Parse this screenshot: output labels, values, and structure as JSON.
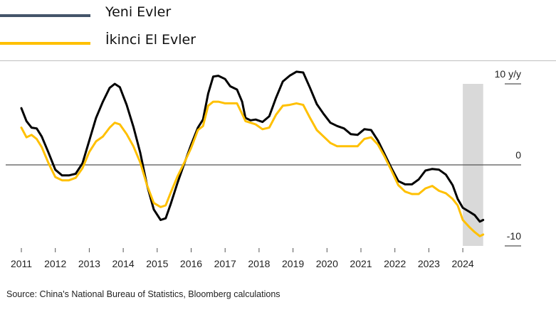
{
  "legend": [
    {
      "label": "Yeni Evler",
      "color": "#44546a"
    },
    {
      "label": "İkinci El Evler",
      "color": "#ffc000"
    }
  ],
  "source": "Source: China's National Bureau of Statistics, Bloomberg calculations",
  "chart_data": {
    "type": "line",
    "title": "",
    "xlabel": "",
    "ylabel": "y/y",
    "xlim": [
      2011,
      2024.6
    ],
    "ylim": [
      -10,
      10
    ],
    "x_ticks": [
      "2011",
      "2012",
      "2013",
      "2014",
      "2015",
      "2016",
      "2017",
      "2018",
      "2019",
      "2020",
      "2021",
      "2022",
      "2023",
      "2024"
    ],
    "y_ticks": [
      {
        "value": 10,
        "label": "10 y/y"
      },
      {
        "value": 0,
        "label": "0"
      },
      {
        "value": -10,
        "label": "-10"
      }
    ],
    "zero_line": true,
    "shaded_region": {
      "from": 2024.0,
      "to": 2024.6,
      "color": "#d9d9d9"
    },
    "series": [
      {
        "name": "New homes",
        "color": "#000000",
        "points": [
          [
            2011.0,
            7.0
          ],
          [
            2011.15,
            5.4
          ],
          [
            2011.3,
            4.6
          ],
          [
            2011.45,
            4.5
          ],
          [
            2011.6,
            3.5
          ],
          [
            2011.8,
            1.5
          ],
          [
            2012.0,
            -0.6
          ],
          [
            2012.2,
            -1.3
          ],
          [
            2012.4,
            -1.3
          ],
          [
            2012.6,
            -1.1
          ],
          [
            2012.8,
            0.2
          ],
          [
            2013.0,
            3.0
          ],
          [
            2013.2,
            5.8
          ],
          [
            2013.4,
            7.8
          ],
          [
            2013.6,
            9.5
          ],
          [
            2013.75,
            10.0
          ],
          [
            2013.9,
            9.6
          ],
          [
            2014.1,
            7.4
          ],
          [
            2014.3,
            4.7
          ],
          [
            2014.5,
            1.5
          ],
          [
            2014.7,
            -2.5
          ],
          [
            2014.9,
            -5.5
          ],
          [
            2015.1,
            -6.8
          ],
          [
            2015.25,
            -6.6
          ],
          [
            2015.4,
            -4.8
          ],
          [
            2015.6,
            -2.2
          ],
          [
            2015.8,
            0.2
          ],
          [
            2016.0,
            2.5
          ],
          [
            2016.2,
            4.6
          ],
          [
            2016.35,
            5.6
          ],
          [
            2016.5,
            8.8
          ],
          [
            2016.65,
            10.9
          ],
          [
            2016.8,
            11.0
          ],
          [
            2017.0,
            10.6
          ],
          [
            2017.15,
            9.7
          ],
          [
            2017.35,
            9.3
          ],
          [
            2017.5,
            7.8
          ],
          [
            2017.6,
            5.8
          ],
          [
            2017.75,
            5.5
          ],
          [
            2017.9,
            5.6
          ],
          [
            2018.1,
            5.3
          ],
          [
            2018.3,
            6.0
          ],
          [
            2018.5,
            8.3
          ],
          [
            2018.7,
            10.3
          ],
          [
            2018.9,
            11.0
          ],
          [
            2019.1,
            11.5
          ],
          [
            2019.3,
            11.4
          ],
          [
            2019.5,
            9.5
          ],
          [
            2019.7,
            7.5
          ],
          [
            2019.9,
            6.3
          ],
          [
            2020.1,
            5.2
          ],
          [
            2020.3,
            4.8
          ],
          [
            2020.5,
            4.5
          ],
          [
            2020.7,
            3.8
          ],
          [
            2020.9,
            3.7
          ],
          [
            2021.1,
            4.4
          ],
          [
            2021.3,
            4.3
          ],
          [
            2021.5,
            3.0
          ],
          [
            2021.7,
            1.3
          ],
          [
            2021.9,
            -0.4
          ],
          [
            2022.1,
            -2.0
          ],
          [
            2022.3,
            -2.4
          ],
          [
            2022.5,
            -2.4
          ],
          [
            2022.7,
            -1.8
          ],
          [
            2022.9,
            -0.7
          ],
          [
            2023.1,
            -0.5
          ],
          [
            2023.3,
            -0.6
          ],
          [
            2023.5,
            -1.2
          ],
          [
            2023.7,
            -2.5
          ],
          [
            2023.85,
            -4.2
          ],
          [
            2024.0,
            -5.3
          ],
          [
            2024.2,
            -5.8
          ],
          [
            2024.35,
            -6.2
          ],
          [
            2024.5,
            -7.0
          ],
          [
            2024.6,
            -6.8
          ]
        ]
      },
      {
        "name": "Second-hand homes",
        "color": "#ffc000",
        "points": [
          [
            2011.0,
            4.6
          ],
          [
            2011.15,
            3.4
          ],
          [
            2011.3,
            3.7
          ],
          [
            2011.45,
            3.2
          ],
          [
            2011.6,
            2.2
          ],
          [
            2011.8,
            0.2
          ],
          [
            2012.0,
            -1.5
          ],
          [
            2012.2,
            -1.9
          ],
          [
            2012.4,
            -1.9
          ],
          [
            2012.6,
            -1.6
          ],
          [
            2012.8,
            -0.4
          ],
          [
            2013.0,
            1.6
          ],
          [
            2013.2,
            2.9
          ],
          [
            2013.4,
            3.5
          ],
          [
            2013.6,
            4.6
          ],
          [
            2013.75,
            5.2
          ],
          [
            2013.9,
            5.0
          ],
          [
            2014.1,
            3.8
          ],
          [
            2014.3,
            2.3
          ],
          [
            2014.5,
            0.3
          ],
          [
            2014.7,
            -2.5
          ],
          [
            2014.9,
            -4.7
          ],
          [
            2015.1,
            -5.2
          ],
          [
            2015.25,
            -5.0
          ],
          [
            2015.4,
            -3.4
          ],
          [
            2015.6,
            -1.4
          ],
          [
            2015.8,
            0.3
          ],
          [
            2016.0,
            2.1
          ],
          [
            2016.2,
            4.3
          ],
          [
            2016.35,
            4.8
          ],
          [
            2016.5,
            7.3
          ],
          [
            2016.65,
            7.8
          ],
          [
            2016.8,
            7.8
          ],
          [
            2017.0,
            7.6
          ],
          [
            2017.15,
            7.6
          ],
          [
            2017.35,
            7.6
          ],
          [
            2017.5,
            6.3
          ],
          [
            2017.6,
            5.4
          ],
          [
            2017.75,
            5.2
          ],
          [
            2017.9,
            5.0
          ],
          [
            2018.1,
            4.4
          ],
          [
            2018.3,
            4.6
          ],
          [
            2018.5,
            6.2
          ],
          [
            2018.7,
            7.3
          ],
          [
            2018.9,
            7.4
          ],
          [
            2019.1,
            7.6
          ],
          [
            2019.3,
            7.4
          ],
          [
            2019.5,
            5.8
          ],
          [
            2019.7,
            4.3
          ],
          [
            2019.9,
            3.5
          ],
          [
            2020.1,
            2.7
          ],
          [
            2020.3,
            2.3
          ],
          [
            2020.5,
            2.3
          ],
          [
            2020.7,
            2.3
          ],
          [
            2020.9,
            2.3
          ],
          [
            2021.1,
            3.2
          ],
          [
            2021.3,
            3.4
          ],
          [
            2021.5,
            2.5
          ],
          [
            2021.7,
            1.0
          ],
          [
            2021.9,
            -0.7
          ],
          [
            2022.1,
            -2.5
          ],
          [
            2022.3,
            -3.3
          ],
          [
            2022.5,
            -3.6
          ],
          [
            2022.7,
            -3.6
          ],
          [
            2022.9,
            -2.9
          ],
          [
            2023.1,
            -2.6
          ],
          [
            2023.3,
            -3.2
          ],
          [
            2023.5,
            -3.5
          ],
          [
            2023.7,
            -4.2
          ],
          [
            2023.85,
            -5.0
          ],
          [
            2024.0,
            -6.8
          ],
          [
            2024.2,
            -7.7
          ],
          [
            2024.35,
            -8.3
          ],
          [
            2024.5,
            -8.8
          ],
          [
            2024.6,
            -8.6
          ]
        ]
      }
    ],
    "legend_position": "top-left"
  }
}
